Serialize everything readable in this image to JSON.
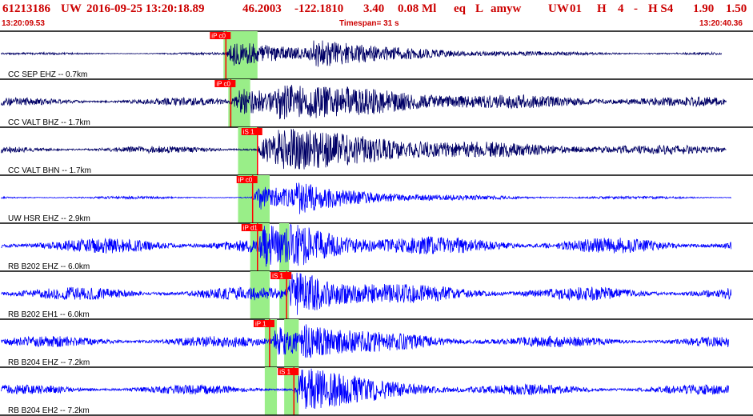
{
  "header": {
    "event_id": "61213186",
    "network": "UW",
    "datetime": "2016-09-25 13:20:18.89",
    "lat": "46.2003",
    "lon": "-122.1810",
    "depth": "3.40",
    "magnitude": "0.08 Ml",
    "type": "eq",
    "l": "L",
    "author": "amyw",
    "net2": "UW",
    "version": "01",
    "h": "H",
    "count": "4",
    "dash": "-",
    "hs": "H S4",
    "v1": "1.90",
    "v2": "1.50"
  },
  "subheader": {
    "start_time": "13:20:09.53",
    "timespan_label": "Timespan=  31 s",
    "end_time": "13:20:40.36"
  },
  "colors": {
    "header_text": "#cc0000",
    "trace_blue": "#0000ff",
    "trace_dark": "#000066",
    "pick_red": "#ff0000",
    "window_green": "#99ee88"
  },
  "chart_data": {
    "type": "seismogram",
    "time_range_s": [
      0,
      31
    ],
    "traces": [
      {
        "label": "CC SEP EHZ -- 0.7km",
        "color": "dark",
        "pick_label": "iP c0",
        "pick_time": 9.3,
        "s_time": 12.7,
        "window": [
          9.2,
          10.6
        ],
        "noise": 0.05,
        "burst": 0.55,
        "decay": 4.0,
        "end_time": 29.7
      },
      {
        "label": "CC VALT BHZ -- 1.7km",
        "color": "dark",
        "pick_label": "iP c0",
        "pick_time": 9.5,
        "s_time": 11.3,
        "window": [
          9.4,
          10.3
        ],
        "noise": 0.18,
        "burst": 0.55,
        "decay": 6.0,
        "end_time": 29.9
      },
      {
        "label": "CC VALT BHN -- 1.7km",
        "color": "dark",
        "pick_label": "iS 1",
        "pick_time": 10.6,
        "s_time": 11.3,
        "window": [
          9.8,
          10.6
        ],
        "noise": 0.16,
        "burst": 0.6,
        "decay": 6.0,
        "end_time": 29.9
      },
      {
        "label": "UW HSR EHZ -- 2.9km",
        "color": "blue",
        "pick_label": "iP c0",
        "pick_time": 10.4,
        "s_time": 12.0,
        "window": [
          9.8,
          11.1
        ],
        "noise": 0.06,
        "burst": 0.55,
        "decay": 3.0,
        "end_time": 30.1
      },
      {
        "label": "RB B202 EHZ -- 6.0km",
        "color": "blue",
        "pick_label": "iP d1",
        "pick_time": 10.6,
        "s_time": 11.8,
        "window": [
          10.3,
          11.1
        ],
        "window2": [
          11.5,
          11.9
        ],
        "noise": 0.35,
        "burst": 0.7,
        "decay": 2.5,
        "end_time": 30.1
      },
      {
        "label": "RB B202 EH1 -- 6.0km",
        "color": "blue",
        "pick_label": "iS 1",
        "pick_time": 11.8,
        "s_time": 11.8,
        "window": [
          10.3,
          11.1
        ],
        "window2": [
          11.5,
          11.9
        ],
        "noise": 0.3,
        "burst": 0.7,
        "decay": 2.5,
        "end_time": 30.1
      },
      {
        "label": "RB B204 EHZ -- 7.2km",
        "color": "blue",
        "pick_label": "iP 1",
        "pick_time": 11.1,
        "s_time": 12.3,
        "window": [
          10.9,
          11.4
        ],
        "window2": [
          11.7,
          12.3
        ],
        "noise": 0.25,
        "burst": 0.7,
        "decay": 2.5,
        "end_time": 30.0
      },
      {
        "label": "RB B204 EH2 -- 7.2km",
        "color": "blue",
        "pick_label": "iS 1",
        "pick_time": 12.1,
        "s_time": 12.1,
        "window": [
          10.9,
          11.4
        ],
        "window2": [
          11.7,
          12.3
        ],
        "noise": 0.22,
        "burst": 0.75,
        "decay": 2.5,
        "end_time": 30.0
      }
    ]
  }
}
